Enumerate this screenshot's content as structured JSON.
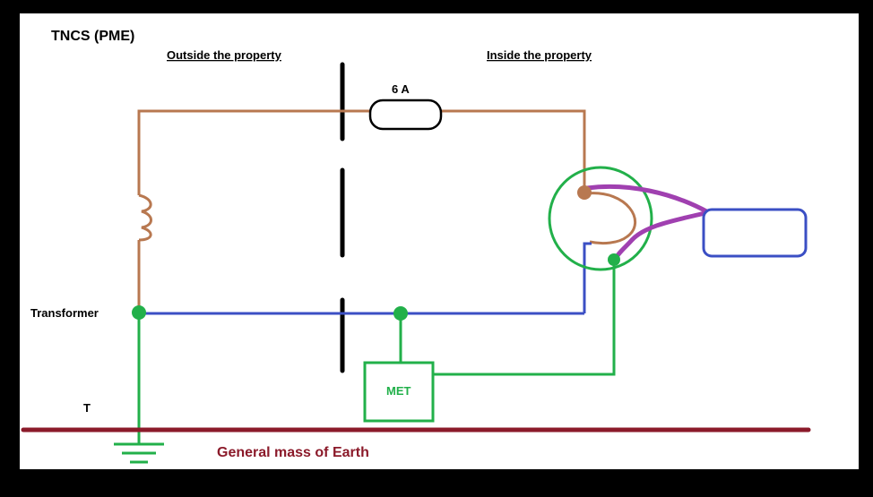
{
  "title": "TNCS (PME)",
  "labels": {
    "outside": "Outside the property",
    "inside": "Inside the property",
    "fuse": "6 A",
    "transformer": "Transformer",
    "terminal": "T",
    "met": "MET",
    "earth": "General mass of Earth"
  },
  "colors": {
    "line": "#b87850",
    "neutral": "#3b4fc4",
    "earth": "#22b04a",
    "purple": "#a040b0",
    "earth_mass": "#8b1a2a",
    "boundary": "#000000",
    "appliance": "#3b4fc4",
    "text": "#000000"
  }
}
